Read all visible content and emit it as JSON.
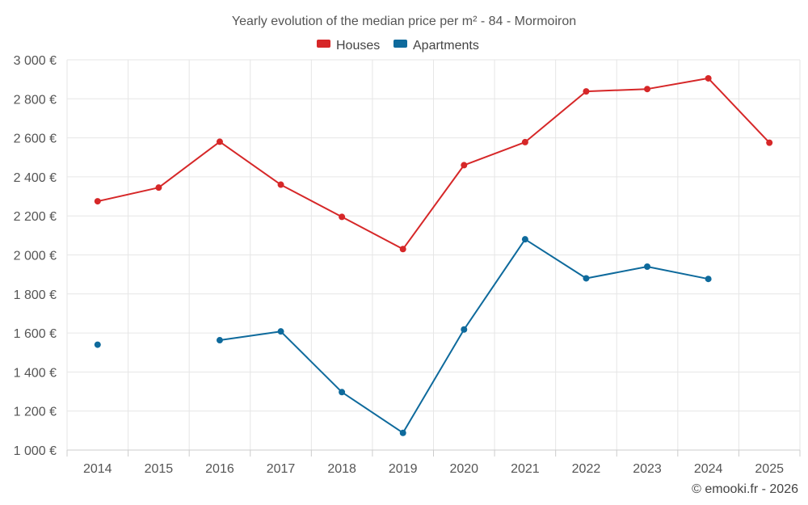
{
  "chart_data": {
    "type": "line",
    "title": "Yearly evolution of the median price per m² - 84 - Mormoiron",
    "xlabel": "",
    "ylabel": "",
    "categories": [
      "2014",
      "2015",
      "2016",
      "2017",
      "2018",
      "2019",
      "2020",
      "2021",
      "2022",
      "2023",
      "2024",
      "2025"
    ],
    "ylim": [
      1000,
      3000
    ],
    "yticks": [
      1000,
      1200,
      1400,
      1600,
      1800,
      2000,
      2200,
      2400,
      2600,
      2800,
      3000
    ],
    "ytick_labels": [
      "1 000 €",
      "1 200 €",
      "1 400 €",
      "1 600 €",
      "1 800 €",
      "2 000 €",
      "2 200 €",
      "2 400 €",
      "2 600 €",
      "2 800 €",
      "3 000 €"
    ],
    "grid": true,
    "legend_position": "top-center",
    "series": [
      {
        "name": "Houses",
        "color": "#d62728",
        "values": [
          2275,
          2345,
          2580,
          2360,
          2195,
          2030,
          2460,
          2578,
          2838,
          2850,
          2905,
          2575
        ]
      },
      {
        "name": "Apartments",
        "color": "#0e6a9c",
        "values": [
          1540,
          null,
          1563,
          1608,
          1297,
          1088,
          1618,
          2080,
          1880,
          1940,
          1877,
          null
        ]
      }
    ]
  },
  "credit": "© emooki.fr - 2026"
}
